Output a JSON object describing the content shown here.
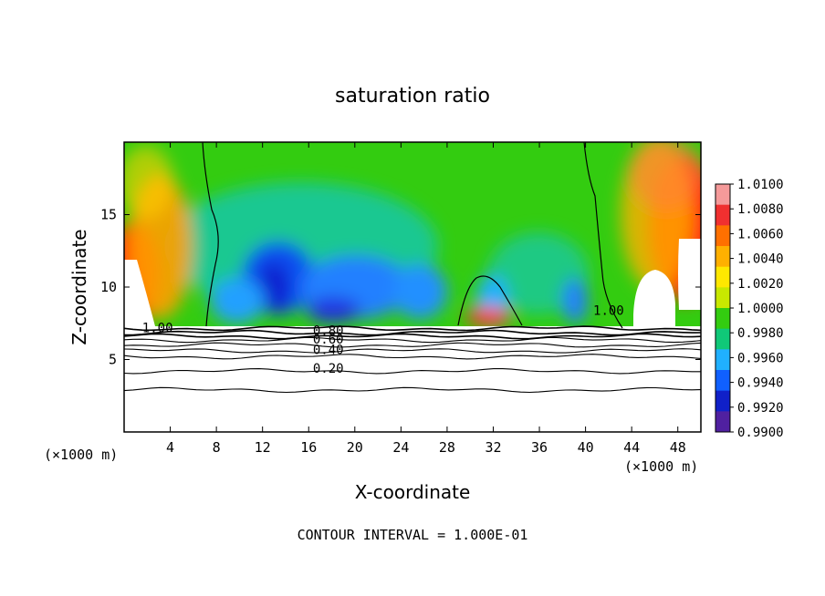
{
  "chart_data": {
    "type": "heatmap",
    "title": "saturation ratio",
    "xlabel": "X-coordinate",
    "ylabel": "Z-coordinate",
    "x_unit_left": "(×1000 m)",
    "x_unit_right": "(×1000 m)",
    "xlim": [
      0,
      50
    ],
    "ylim": [
      0,
      20
    ],
    "xticks": [
      4,
      8,
      12,
      16,
      20,
      24,
      28,
      32,
      36,
      40,
      44,
      48
    ],
    "yticks": [
      5,
      10,
      15
    ],
    "footer": "CONTOUR INTERVAL = 1.000E-01",
    "colorbar": {
      "min": 0.99,
      "max": 1.01,
      "labels": [
        "1.0100",
        "1.0080",
        "1.0060",
        "1.0040",
        "1.0020",
        "1.0000",
        "0.9980",
        "0.9960",
        "0.9940",
        "0.9920",
        "0.9900"
      ]
    },
    "contour_labels": [
      {
        "text": "1.00",
        "x": 2.9,
        "y": 7.2
      },
      {
        "text": "0.80",
        "x": 17.7,
        "y": 7.0
      },
      {
        "text": "0.60",
        "x": 17.7,
        "y": 6.4
      },
      {
        "text": "0.40",
        "x": 17.7,
        "y": 5.7
      },
      {
        "text": "0.20",
        "x": 17.7,
        "y": 4.4
      },
      {
        "text": "1.00",
        "x": 42.0,
        "y": 8.4
      }
    ],
    "unsaturated_levels": [
      7.15,
      6.85,
      6.6,
      6.35,
      6.0,
      5.6,
      5.2,
      4.2,
      2.9
    ]
  }
}
